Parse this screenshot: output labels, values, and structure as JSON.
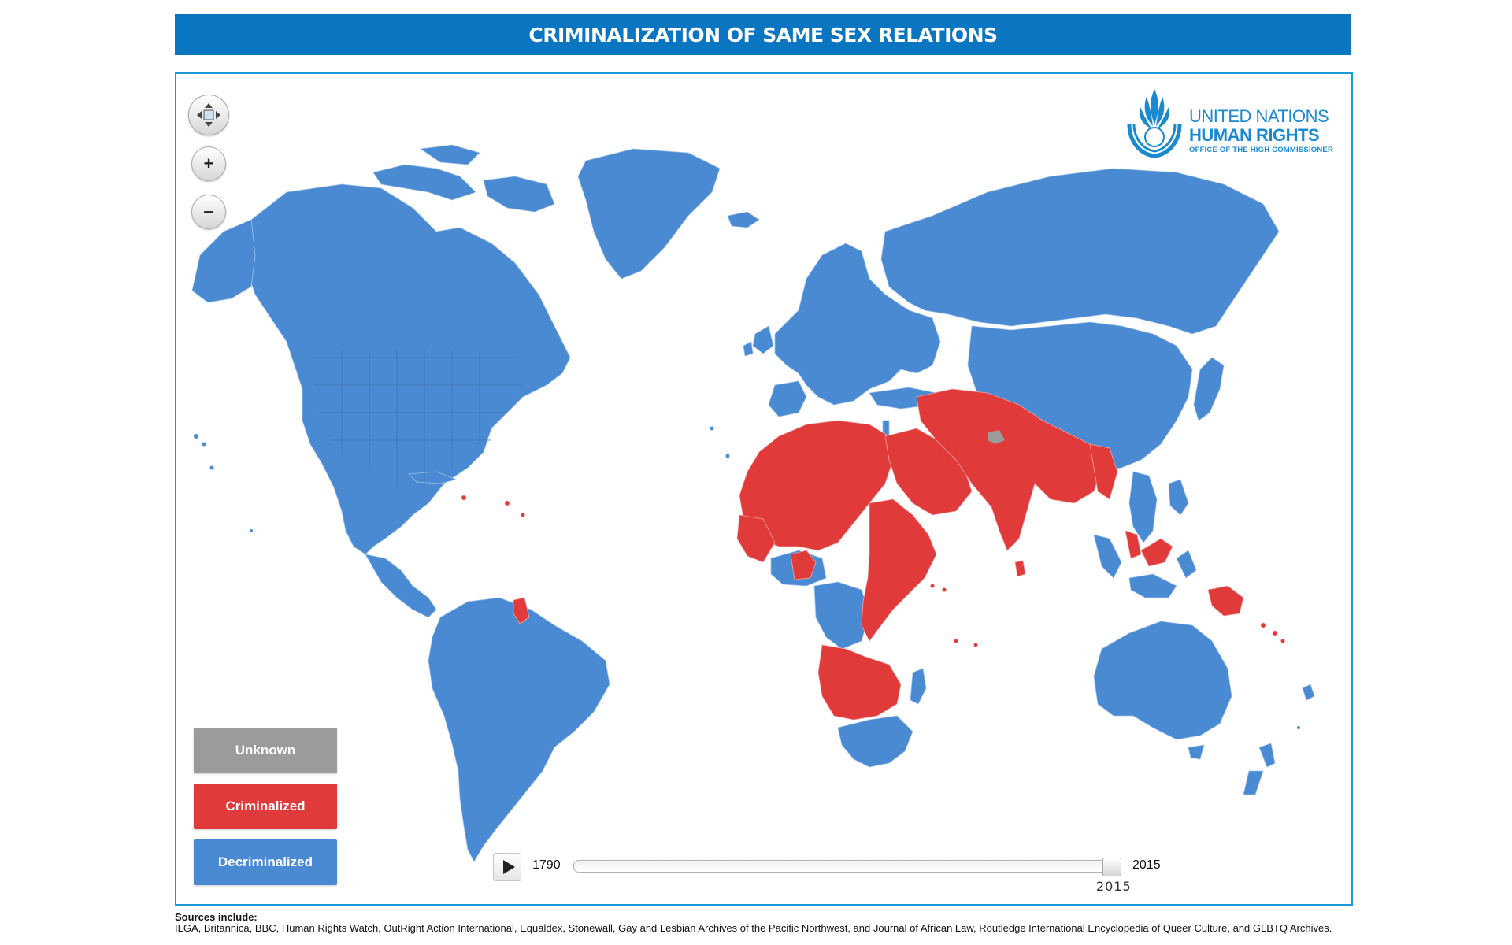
{
  "title": "CRIMINALIZATION OF SAME SEX RELATIONS",
  "colors": {
    "unknown": "#9b9b9b",
    "criminalized": "#e03a3a",
    "decriminalized": "#4a8ad2",
    "title_bar": "#0a76c2",
    "frame": "#1a9ad9"
  },
  "map_controls": {
    "pan_icon": "pan-arrows-icon",
    "zoom_in_label": "+",
    "zoom_out_label": "–"
  },
  "logo": {
    "line1": "UNITED NATIONS",
    "line2": "HUMAN RIGHTS",
    "line3": "OFFICE OF THE HIGH COMMISSIONER",
    "icon": "un-emblem-icon"
  },
  "legend": [
    {
      "label": "Unknown",
      "status": "unknown"
    },
    {
      "label": "Criminalized",
      "status": "criminalized"
    },
    {
      "label": "Decriminalized",
      "status": "decriminalized"
    }
  ],
  "timeline": {
    "start_year": "1790",
    "end_year": "2015",
    "current_year": "2015",
    "slider_fraction": 1.0
  },
  "sources": {
    "heading": "Sources include:",
    "text": "ILGA, Britannica, BBC, Human Rights Watch, OutRight Action International, Equaldex, Stonewall, Gay and Lesbian Archives of the Pacific Northwest, and Journal of African Law, Routledge International Encyclopedia of Queer Culture, and GLBTQ Archives."
  }
}
